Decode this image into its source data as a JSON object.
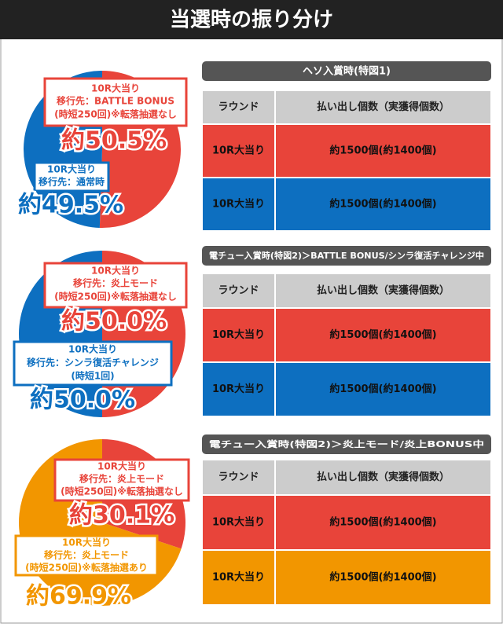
{
  "title": "当選時の振り分け",
  "sections": [
    {
      "heading": "ヘソ入賞時(特図1)",
      "pie": {
        "type": "pie",
        "values": [
          50.5,
          49.5
        ],
        "value_labels": [
          "約50.5%",
          "約49.5%"
        ],
        "colors": [
          "#e8443a",
          "#0d6fc0"
        ],
        "callouts": [
          [
            "10R大当り",
            "移行先：BATTLE BONUS",
            "(時短250回)※転落抽選なし"
          ],
          [
            "10R大当り",
            "移行先：通常時"
          ]
        ]
      },
      "table": {
        "header": [
          "ラウンド",
          "払い出し個数（実獲得個数）"
        ],
        "rows": [
          [
            "10R大当り",
            "約1500個(約1400個)"
          ],
          [
            "10R大当り",
            "約1500個(約1400個)"
          ]
        ]
      }
    },
    {
      "heading": "電チュー入賞時(特図2)＞BATTLE BONUS/シンラ復活チャレンジ中",
      "pie": {
        "type": "pie",
        "values": [
          50.0,
          50.0
        ],
        "value_labels": [
          "約50.0%",
          "約50.0%"
        ],
        "colors": [
          "#e8443a",
          "#0d6fc0"
        ],
        "callouts": [
          [
            "10R大当り",
            "移行先：炎上モード",
            "(時短250回)※転落抽選なし"
          ],
          [
            "10R大当り",
            "移行先：シンラ復活チャレンジ",
            "(時短1回)"
          ]
        ]
      },
      "table": {
        "header": [
          "ラウンド",
          "払い出し個数（実獲得個数）"
        ],
        "rows": [
          [
            "10R大当り",
            "約1500個(約1400個)"
          ],
          [
            "10R大当り",
            "約1500個(約1400個)"
          ]
        ]
      }
    },
    {
      "heading": "電チュー入賞時(特図2)＞炎上モード/炎上BONUS中",
      "pie": {
        "type": "pie",
        "values": [
          30.1,
          69.9
        ],
        "value_labels": [
          "約30.1%",
          "約69.9%"
        ],
        "colors": [
          "#e8443a",
          "#f29600"
        ],
        "callouts": [
          [
            "10R大当り",
            "移行先：炎上モード",
            "(時短250回)※転落抽選なし"
          ],
          [
            "10R大当り",
            "移行先：炎上モード",
            "(時短250回)※転落抽選あり"
          ]
        ]
      },
      "table": {
        "header": [
          "ラウンド",
          "払い出し個数（実獲得個数）"
        ],
        "rows": [
          [
            "10R大当り",
            "約1500個(約1400個)"
          ],
          [
            "10R大当り",
            "約1500個(約1400個)"
          ]
        ]
      }
    }
  ]
}
